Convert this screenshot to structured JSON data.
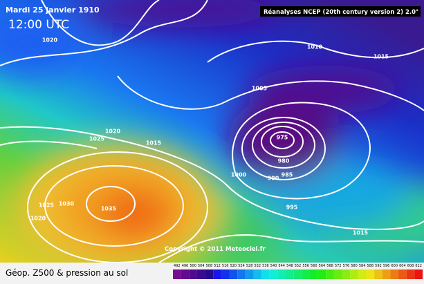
{
  "header": {
    "date": "Mardi 25 janvier 1910",
    "time": "12:00 UTC",
    "source": "Réanalyses NCEP (20th century version 2) 2.0°"
  },
  "copyright": "Copyright © 2011 Meteociel.fr",
  "isobar_labels": [
    "1020",
    "1010",
    "1015",
    "1005",
    "1020",
    "1025",
    "1015",
    "975",
    "980",
    "1000",
    "990",
    "985",
    "1025",
    "1030",
    "1035",
    "1020",
    "995",
    "1015"
  ],
  "legend": {
    "title": "Géop. Z500 & pression au sol",
    "scale": [
      "492",
      "496",
      "500",
      "504",
      "508",
      "512",
      "516",
      "520",
      "524",
      "528",
      "532",
      "536",
      "540",
      "544",
      "548",
      "552",
      "556",
      "560",
      "564",
      "568",
      "572",
      "576",
      "580",
      "584",
      "588",
      "592",
      "596",
      "600",
      "604",
      "608",
      "612"
    ]
  }
}
